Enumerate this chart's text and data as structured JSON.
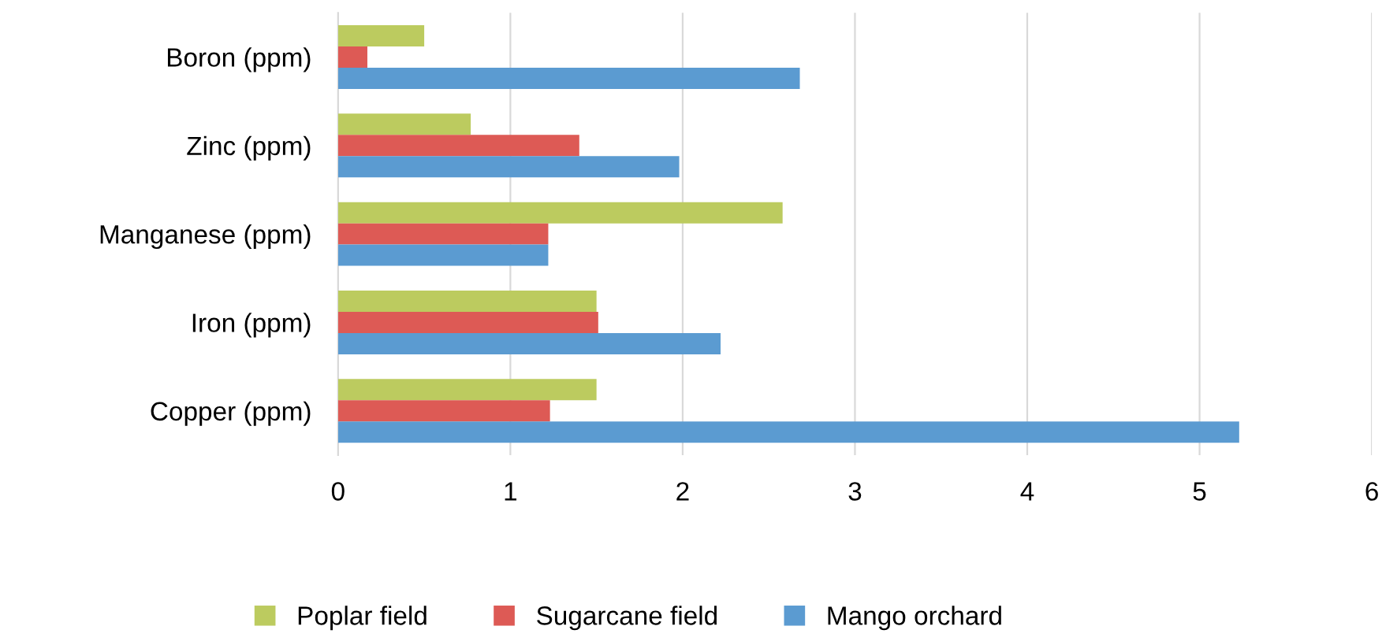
{
  "chart_data": {
    "type": "bar",
    "orientation": "horizontal",
    "categories": [
      "Boron (ppm)",
      "Zinc (ppm)",
      "Manganese (ppm)",
      "Iron (ppm)",
      "Copper (ppm)"
    ],
    "series": [
      {
        "name": "Poplar field",
        "color": "#bccb5f",
        "values": [
          0.5,
          0.77,
          2.58,
          1.5,
          1.5
        ]
      },
      {
        "name": "Sugarcane field",
        "color": "#dd5a55",
        "values": [
          0.17,
          1.4,
          1.22,
          1.51,
          1.23
        ]
      },
      {
        "name": "Mango orchard",
        "color": "#5b9bd1",
        "values": [
          2.68,
          1.98,
          1.22,
          2.22,
          5.23
        ]
      }
    ],
    "xlim": [
      0,
      6
    ],
    "xticks": [
      0,
      1,
      2,
      3,
      4,
      5,
      6
    ],
    "grid": "x",
    "legend": "bottom"
  }
}
